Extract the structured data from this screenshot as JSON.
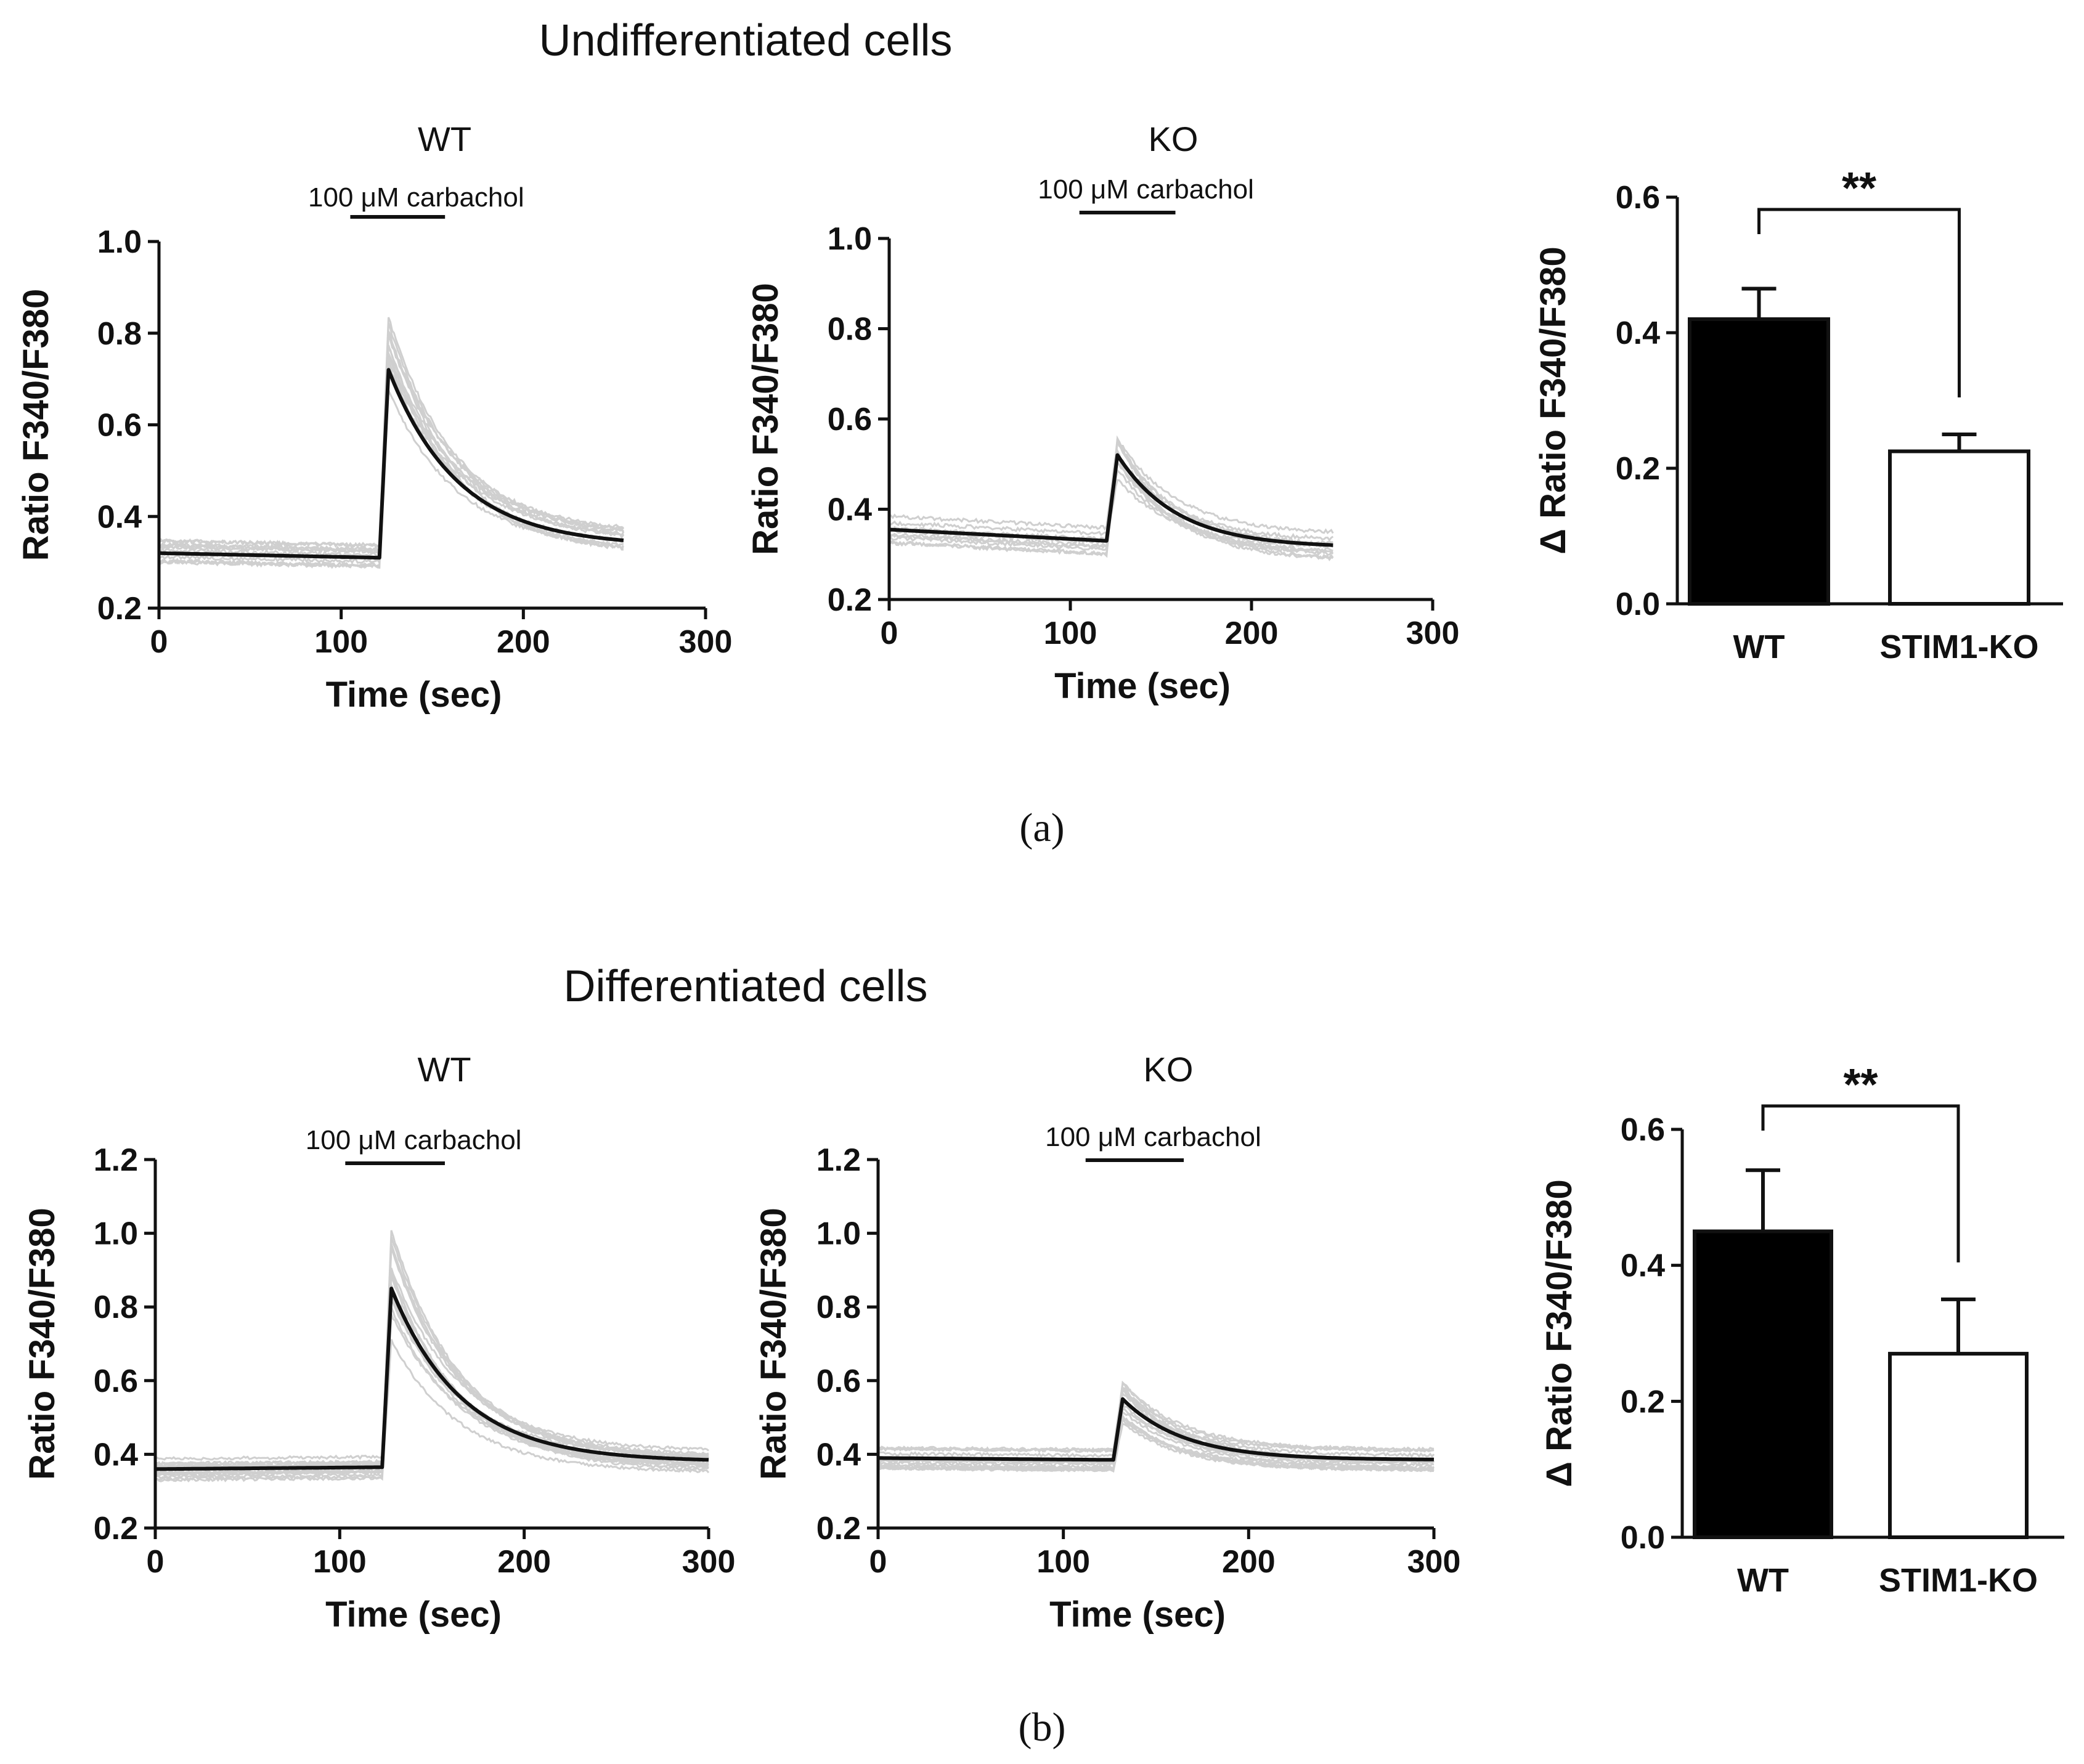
{
  "figure": {
    "panel_a": {
      "title": "Undifferentiated cells",
      "caption": "(a)"
    },
    "panel_b": {
      "title": "Differentiated cells",
      "caption": "(b)"
    }
  },
  "chart_data": [
    {
      "id": "a_wt",
      "type": "line",
      "title": "WT",
      "stimulus": {
        "label": "100 μM carbachol",
        "start": 105,
        "end": 157
      },
      "xlabel": "Time (sec)",
      "ylabel": "Ratio F340/F380",
      "xlim": [
        0,
        300
      ],
      "ylim": [
        0.2,
        1.0
      ],
      "xticks": [
        "0",
        "100",
        "200",
        "300"
      ],
      "yticks": [
        "0.2",
        "0.4",
        "0.6",
        "0.8",
        "1.0"
      ],
      "trace": {
        "baseline_start": 0.32,
        "baseline_end": 0.31,
        "peak": 0.72,
        "final": 0.335,
        "rise": 121,
        "peak_t": 126,
        "end": 255,
        "tau": 38
      },
      "individual_trace_count": 12
    },
    {
      "id": "a_ko",
      "type": "line",
      "title": "KO",
      "stimulus": {
        "label": "100 μM carbachol",
        "start": 105,
        "end": 158
      },
      "xlabel": "Time (sec)",
      "ylabel": "Ratio F340/F380",
      "xlim": [
        0,
        300
      ],
      "ylim": [
        0.2,
        1.0
      ],
      "xticks": [
        "0",
        "100",
        "200",
        "300"
      ],
      "yticks": [
        "0.2",
        "0.4",
        "0.6",
        "0.8",
        "1.0"
      ],
      "trace": {
        "baseline_start": 0.355,
        "baseline_end": 0.33,
        "peak": 0.52,
        "final": 0.315,
        "rise": 120,
        "peak_t": 126,
        "end": 245,
        "tau": 33
      },
      "individual_trace_count": 10
    },
    {
      "id": "a_bar",
      "type": "bar",
      "ylabel": "Δ Ratio F340/F380",
      "ylim": [
        0,
        0.6
      ],
      "yticks": [
        "0.0",
        "0.2",
        "0.4",
        "0.6"
      ],
      "categories": [
        "WT",
        "STIM1-KO"
      ],
      "values": [
        0.42,
        0.225
      ],
      "errors": [
        0.045,
        0.025
      ],
      "fills": [
        "#000000",
        "#ffffff"
      ],
      "significance": "**"
    },
    {
      "id": "b_wt",
      "type": "line",
      "title": "WT",
      "stimulus": {
        "label": "100 μM carbachol",
        "start": 103,
        "end": 157
      },
      "xlabel": "Time (sec)",
      "ylabel": "Ratio F340/F380",
      "xlim": [
        0,
        300
      ],
      "ylim": [
        0.2,
        1.2
      ],
      "xticks": [
        "0",
        "100",
        "200",
        "300"
      ],
      "yticks": [
        "0.2",
        "0.4",
        "0.6",
        "0.8",
        "1.0",
        "1.2"
      ],
      "trace": {
        "baseline_start": 0.36,
        "baseline_end": 0.365,
        "peak": 0.85,
        "final": 0.38,
        "rise": 123,
        "peak_t": 128,
        "end": 300,
        "tau": 38
      },
      "individual_trace_count": 16
    },
    {
      "id": "b_ko",
      "type": "line",
      "title": "KO",
      "stimulus": {
        "label": "100 μM carbachol",
        "start": 112,
        "end": 165
      },
      "xlabel": "Time (sec)",
      "ylabel": "Ratio F340/F380",
      "xlim": [
        0,
        300
      ],
      "ylim": [
        0.2,
        1.2
      ],
      "xticks": [
        "0",
        "100",
        "200",
        "300"
      ],
      "yticks": [
        "0.2",
        "0.4",
        "0.6",
        "0.8",
        "1.0",
        "1.2"
      ],
      "trace": {
        "baseline_start": 0.39,
        "baseline_end": 0.385,
        "peak": 0.55,
        "final": 0.385,
        "rise": 127,
        "peak_t": 132,
        "end": 300,
        "tau": 33
      },
      "individual_trace_count": 16
    },
    {
      "id": "b_bar",
      "type": "bar",
      "ylabel": "Δ Ratio F340/F380",
      "ylim": [
        0,
        0.6
      ],
      "yticks": [
        "0.0",
        "0.2",
        "0.4",
        "0.6"
      ],
      "categories": [
        "WT",
        "STIM1-KO"
      ],
      "values": [
        0.45,
        0.27
      ],
      "errors": [
        0.09,
        0.08
      ],
      "fills": [
        "#000000",
        "#ffffff"
      ],
      "significance": "**"
    }
  ]
}
